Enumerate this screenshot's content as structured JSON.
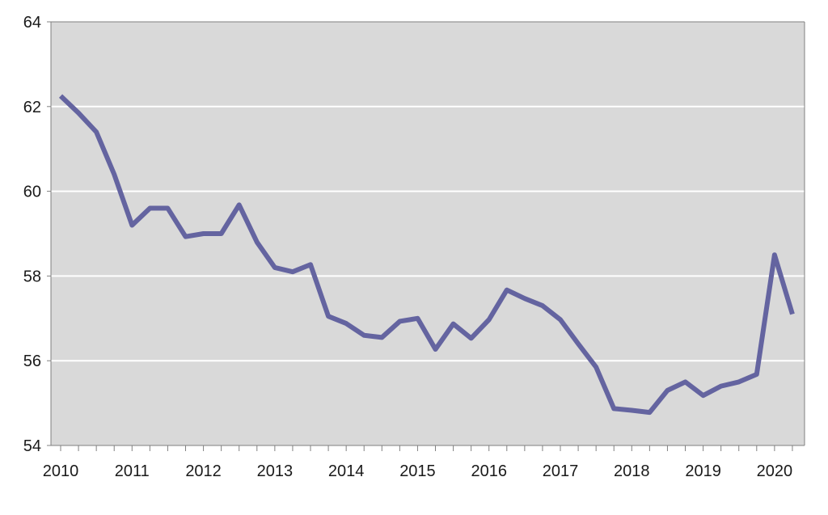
{
  "chart_data": {
    "type": "line",
    "title": "",
    "xlabel": "",
    "ylabel": "",
    "ylim": [
      54,
      64
    ],
    "yticks": [
      54,
      56,
      58,
      60,
      62,
      64
    ],
    "xticks": [
      "2010",
      "2011",
      "2012",
      "2013",
      "2014",
      "2015",
      "2016",
      "2017",
      "2018",
      "2019",
      "2020"
    ],
    "grid": true,
    "legend": "none",
    "colors": {
      "plot_background": "#d9d9d9",
      "gridline": "#ffffff",
      "line": "#6464a0",
      "axis": "#808080"
    },
    "series": [
      {
        "x": [
          "2010-Q1",
          "2010-Q2",
          "2010-Q3",
          "2010-Q4",
          "2011-Q1",
          "2011-Q2",
          "2011-Q3",
          "2011-Q4",
          "2012-Q1",
          "2012-Q2",
          "2012-Q3",
          "2012-Q4",
          "2013-Q1",
          "2013-Q2",
          "2013-Q3",
          "2013-Q4",
          "2014-Q1",
          "2014-Q2",
          "2014-Q3",
          "2014-Q4",
          "2015-Q1",
          "2015-Q2",
          "2015-Q3",
          "2015-Q4",
          "2016-Q1",
          "2016-Q2",
          "2016-Q3",
          "2016-Q4",
          "2017-Q1",
          "2017-Q2",
          "2017-Q3",
          "2017-Q4",
          "2018-Q1",
          "2018-Q2",
          "2018-Q3",
          "2018-Q4",
          "2019-Q1",
          "2019-Q2",
          "2019-Q3",
          "2019-Q4",
          "2020-Q1",
          "2020-Q2"
        ],
        "values": [
          62.25,
          61.85,
          61.4,
          60.4,
          59.2,
          59.6,
          59.6,
          58.93,
          59.0,
          59.0,
          59.68,
          58.8,
          58.2,
          58.1,
          58.27,
          57.05,
          56.88,
          56.6,
          56.55,
          56.93,
          57.0,
          56.27,
          56.87,
          56.53,
          56.97,
          57.67,
          57.47,
          57.3,
          56.97,
          56.4,
          55.85,
          54.87,
          54.83,
          54.78,
          55.3,
          55.5,
          55.18,
          55.4,
          55.5,
          55.68,
          58.5,
          57.1
        ]
      }
    ]
  }
}
